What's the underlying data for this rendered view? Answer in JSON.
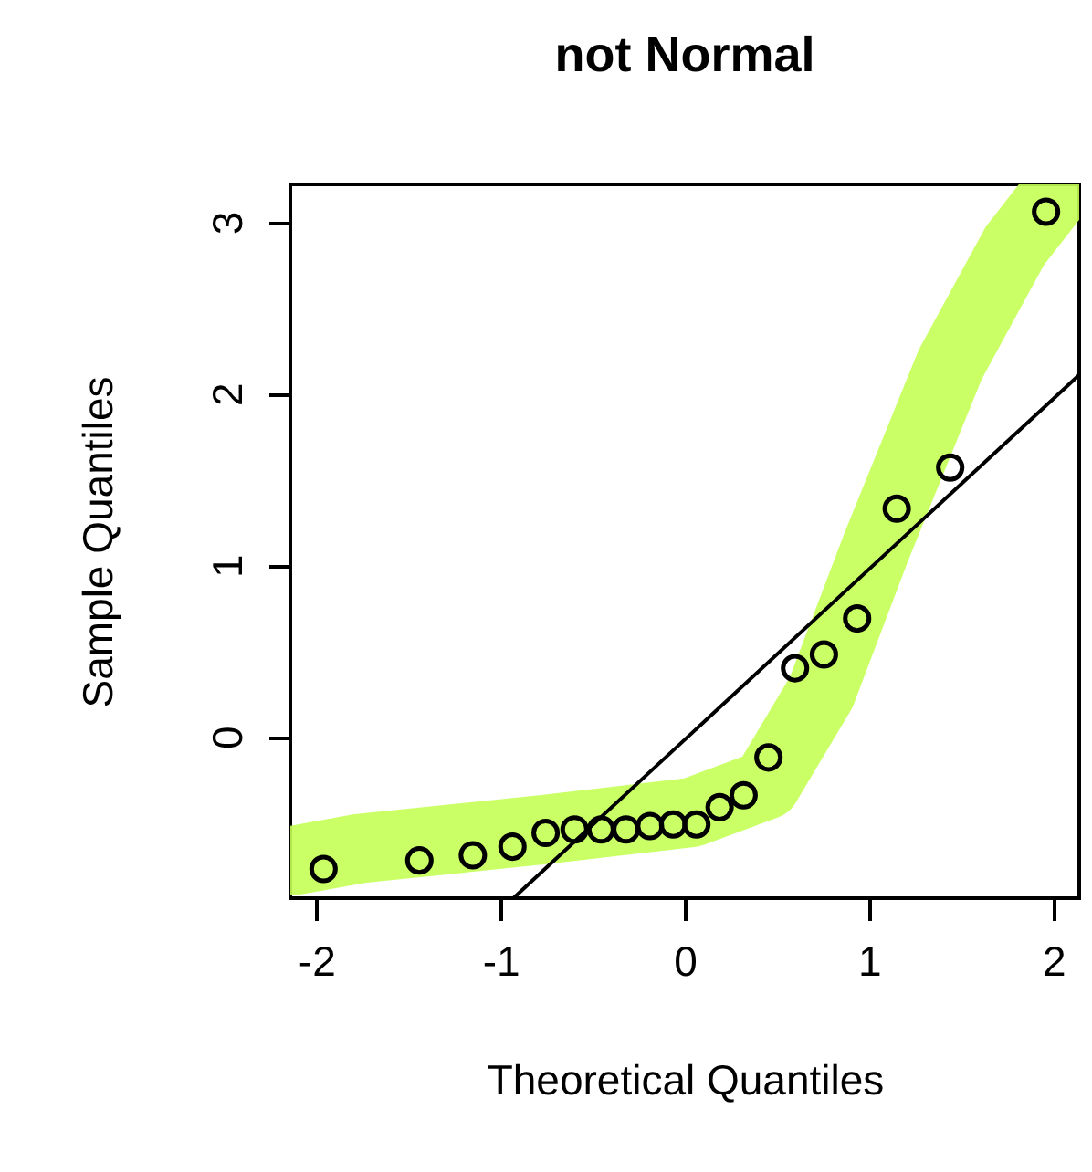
{
  "chart_data": {
    "type": "scatter",
    "title": "not Normal",
    "xlabel": "Theoretical Quantiles",
    "ylabel": "Sample Quantiles",
    "xlim": [
      -2.14,
      2.14
    ],
    "ylim": [
      -0.94,
      3.22
    ],
    "xticks": [
      -2,
      -1,
      0,
      1,
      2
    ],
    "yticks": [
      0,
      1,
      2,
      3
    ],
    "series": [
      {
        "type": "line",
        "color": "#c4ff55",
        "x": [
          -2.12,
          -1.76,
          -0.76,
          0.04,
          0.44,
          0.74,
          1.04,
          1.44,
          1.79,
          2.0
        ],
        "values": [
          -0.72,
          -0.65,
          -0.54,
          -0.44,
          -0.28,
          0.26,
          1.11,
          2.17,
          2.86,
          3.15
        ]
      },
      {
        "marker": "circle",
        "color": "#000000",
        "x": [
          -1.96,
          -1.44,
          -1.15,
          -0.935,
          -0.755,
          -0.598,
          -0.454,
          -0.319,
          -0.189,
          -0.063,
          0.063,
          0.189,
          0.319,
          0.454,
          0.598,
          0.755,
          0.935,
          1.15,
          1.44,
          1.96
        ],
        "values": [
          -0.77,
          -0.72,
          -0.69,
          -0.64,
          -0.56,
          -0.54,
          -0.54,
          -0.54,
          -0.52,
          -0.51,
          -0.51,
          -0.41,
          -0.34,
          -0.12,
          0.4,
          0.48,
          0.69,
          1.33,
          1.57,
          3.06
        ]
      },
      {
        "type": "line",
        "color": "#000000",
        "x": [
          -0.93,
          2.14
        ],
        "values": [
          -0.94,
          2.11
        ]
      }
    ]
  }
}
